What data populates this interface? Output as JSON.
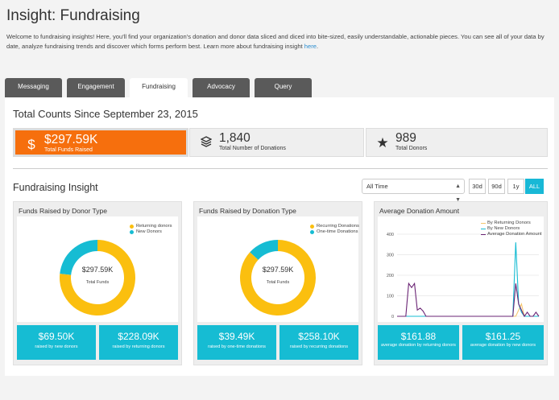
{
  "header": {
    "title": "Insight: Fundraising",
    "intro_text": "Welcome to fundraising insights! Here, you'll find your organization's donation and donor data sliced and diced into bite-sized, easily understandable, actionable pieces. You can see all of your data by date, analyze fundraising trends and discover which forms perform best. Learn more about fundraising insight ",
    "intro_link": "here",
    "intro_end": "."
  },
  "tabs": [
    {
      "label": "Messaging",
      "active": false
    },
    {
      "label": "Engagement",
      "active": false
    },
    {
      "label": "Fundraising",
      "active": true
    },
    {
      "label": "Advocacy",
      "active": false
    },
    {
      "label": "Query",
      "active": false
    }
  ],
  "totals": {
    "title": "Total Counts Since September 23, 2015",
    "kpis": [
      {
        "icon": "dollar-icon",
        "glyph": "$",
        "value": "$297.59K",
        "label": "Total Funds Raised"
      },
      {
        "icon": "layers-icon",
        "glyph": "",
        "value": "1,840",
        "label": "Total Number of Donations"
      },
      {
        "icon": "star-icon",
        "glyph": "★",
        "value": "989",
        "label": "Total Donors"
      }
    ]
  },
  "insight": {
    "title": "Fundraising Insight",
    "range_select": "All Time",
    "range_buttons": [
      {
        "label": "30d",
        "active": false
      },
      {
        "label": "90d",
        "active": false
      },
      {
        "label": "1y",
        "active": false
      },
      {
        "label": "ALL",
        "active": true
      }
    ]
  },
  "colors": {
    "orange": "#f66f0d",
    "teal": "#16bcd3",
    "gold": "#fbbf0f",
    "purple": "#6a2474",
    "ink_gold": "#f5c66e"
  },
  "cards": [
    {
      "title": "Funds Raised by Donor Type",
      "legend": [
        "Returning donors",
        "New Donors"
      ],
      "center_value": "$297.59K",
      "center_label": "Total Funds",
      "stats": [
        {
          "value": "$69.50K",
          "label": "raised by new donors"
        },
        {
          "value": "$228.09K",
          "label": "raised by returning donors"
        }
      ]
    },
    {
      "title": "Funds Raised by Donation Type",
      "legend": [
        "Recurring Donations",
        "One-time Donations"
      ],
      "center_value": "$297.59K",
      "center_label": "Total Funds",
      "stats": [
        {
          "value": "$39.49K",
          "label": "raised by one-time donations"
        },
        {
          "value": "$258.10K",
          "label": "raised by recurring donations"
        }
      ]
    },
    {
      "title": "Average Donation Amount",
      "legend": [
        "By Returning Donors",
        "By New Donors",
        "Average Donation Amount"
      ],
      "stats": [
        {
          "value": "$161.88",
          "label": "average donation by returning donors"
        },
        {
          "value": "$161.25",
          "label": "average donation by new donors"
        }
      ]
    }
  ],
  "chart_data": [
    {
      "type": "pie",
      "title": "Funds Raised by Donor Type",
      "categories": [
        "Returning donors",
        "New Donors"
      ],
      "values": [
        228.09,
        69.5
      ],
      "unit": "$K"
    },
    {
      "type": "pie",
      "title": "Funds Raised by Donation Type",
      "categories": [
        "Recurring Donations",
        "One-time Donations"
      ],
      "values": [
        258.1,
        39.49
      ],
      "unit": "$K"
    },
    {
      "type": "line",
      "title": "Average Donation Amount",
      "ylim": [
        0,
        400
      ],
      "yticks": [
        0,
        100,
        200,
        300,
        400
      ],
      "grid": true,
      "legend_position": "top-right",
      "x": [
        0,
        1,
        2,
        3,
        4,
        5,
        6,
        7,
        8,
        9,
        10,
        11,
        12,
        13,
        14,
        15,
        16,
        17,
        18,
        19,
        20,
        21,
        22,
        23,
        24,
        25,
        26,
        27,
        28,
        29,
        30,
        31,
        32,
        33,
        34,
        35,
        36,
        37,
        38,
        39,
        40,
        41,
        42,
        43,
        44,
        45,
        46,
        47,
        48,
        49
      ],
      "series": [
        {
          "name": "By Returning Donors",
          "color": "#f5c66e",
          "values": [
            0,
            0,
            0,
            0,
            0,
            0,
            0,
            0,
            0,
            0,
            0,
            0,
            0,
            0,
            0,
            0,
            0,
            0,
            0,
            0,
            0,
            0,
            0,
            0,
            0,
            0,
            0,
            0,
            0,
            0,
            0,
            0,
            0,
            0,
            0,
            0,
            0,
            0,
            0,
            0,
            0,
            0,
            30,
            60,
            0,
            0,
            0,
            0,
            0,
            0
          ]
        },
        {
          "name": "By New Donors",
          "color": "#16bcd3",
          "values": [
            0,
            0,
            0,
            0,
            0,
            0,
            0,
            0,
            0,
            0,
            0,
            0,
            0,
            0,
            0,
            0,
            0,
            0,
            0,
            0,
            0,
            0,
            0,
            0,
            0,
            0,
            0,
            0,
            0,
            0,
            0,
            0,
            0,
            0,
            0,
            0,
            0,
            0,
            0,
            0,
            0,
            360,
            60,
            20,
            0,
            0,
            0,
            0,
            0,
            0
          ]
        },
        {
          "name": "Average Donation Amount",
          "color": "#6a2474",
          "values": [
            0,
            0,
            0,
            0,
            160,
            140,
            160,
            30,
            40,
            25,
            0,
            0,
            0,
            0,
            0,
            0,
            0,
            0,
            0,
            0,
            0,
            0,
            0,
            0,
            0,
            0,
            0,
            0,
            0,
            0,
            0,
            0,
            0,
            0,
            0,
            0,
            0,
            0,
            0,
            0,
            0,
            160,
            60,
            30,
            0,
            20,
            0,
            0,
            20,
            0
          ]
        }
      ]
    }
  ]
}
